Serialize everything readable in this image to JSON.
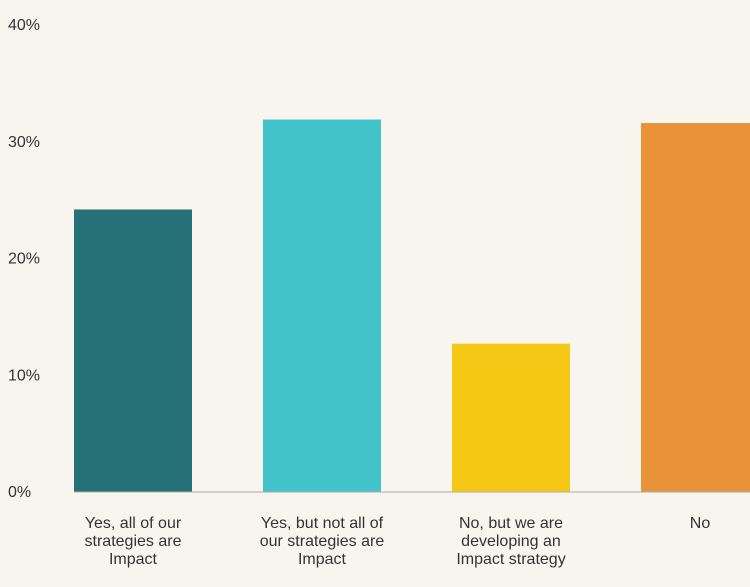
{
  "chart_data": {
    "type": "bar",
    "categories": [
      "Yes, all of our strategies are Impact",
      "Yes, but not all of our strategies are Impact",
      "No, but we are developing an Impact strategy",
      "No"
    ],
    "values": [
      24.2,
      31.9,
      12.7,
      31.6
    ],
    "colors": [
      "#257177",
      "#41c3c9",
      "#f5c816",
      "#e8923a"
    ],
    "ylim": [
      0,
      40
    ],
    "yticks": [
      {
        "value": 0,
        "label": "0%"
      },
      {
        "value": 10,
        "label": "10%"
      },
      {
        "value": 20,
        "label": "20%"
      },
      {
        "value": 30,
        "label": "30%"
      },
      {
        "value": 40,
        "label": "40%"
      }
    ],
    "grid": false
  }
}
